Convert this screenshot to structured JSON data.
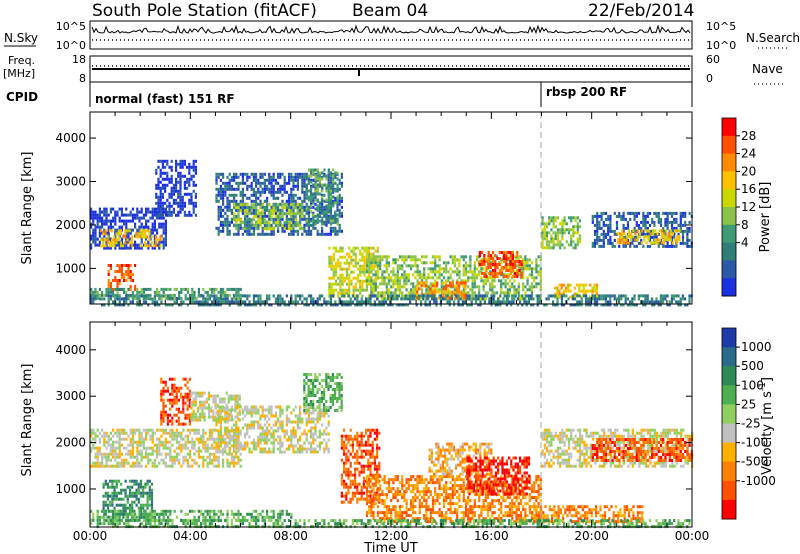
{
  "header": {
    "station": "South Pole Station (fitACF)",
    "beam": "Beam 04",
    "date": "22/Feb/2014"
  },
  "top_panels": {
    "nsky_label": "N.Sky",
    "nsky_ticks": [
      "10^5",
      "10^0"
    ],
    "nsearch_label": "N.Search",
    "nsearch_ticks": [
      "10^5",
      "10^0"
    ],
    "freq_label": "Freq.",
    "freq_unit": "[MHz]",
    "freq_ticks": [
      "18",
      "8"
    ],
    "nave_label": "Nave",
    "nave_ticks": [
      "60",
      "0"
    ],
    "cpid_label": "CPID",
    "cpid_segments": [
      {
        "label": "normal (fast) 151 RF",
        "start_hour": 0
      },
      {
        "label": "rbsp 200 RF",
        "start_hour": 18
      }
    ]
  },
  "chart_data": [
    {
      "type": "heatmap",
      "parameter": "Power",
      "ylabel": "Slant Range [km]",
      "ylim": [
        180,
        4600
      ],
      "yticks": [
        1000,
        2000,
        3000,
        4000
      ],
      "xlabel": "Time UT",
      "xlim_hours": [
        0,
        24
      ],
      "xtick_labels": [
        "00:00",
        "04:00",
        "08:00",
        "12:00",
        "16:00",
        "20:00",
        "00:00"
      ],
      "colorbar": {
        "label": "Power [dB]",
        "ticks": [
          "28",
          "24",
          "20",
          "16",
          "12",
          "8",
          "4"
        ],
        "colors": [
          "#ff0000",
          "#ff4f00",
          "#ff8a00",
          "#ffc000",
          "#c8d800",
          "#88c24a",
          "#3f9a76",
          "#2d7f77",
          "#2a5aa6",
          "#1b30e0"
        ]
      },
      "regions": [
        {
          "t0": 0,
          "t1": 3,
          "r0": 1500,
          "r1": 2400,
          "level": 9
        },
        {
          "t0": 0.4,
          "t1": 2.8,
          "r0": 1550,
          "r1": 1900,
          "level": 3
        },
        {
          "t0": 0.7,
          "t1": 1.8,
          "r0": 500,
          "r1": 1100,
          "level": 1
        },
        {
          "t0": 0,
          "t1": 6,
          "r0": 300,
          "r1": 550,
          "level": 6
        },
        {
          "t0": 2.6,
          "t1": 4.2,
          "r0": 2200,
          "r1": 3500,
          "level": 9
        },
        {
          "t0": 5,
          "t1": 10,
          "r0": 1800,
          "r1": 3200,
          "level": 8
        },
        {
          "t0": 5.7,
          "t1": 8.5,
          "r0": 1900,
          "r1": 2500,
          "level": 5
        },
        {
          "t0": 8.6,
          "t1": 9.9,
          "r0": 2000,
          "r1": 3300,
          "level": 6
        },
        {
          "t0": 9.5,
          "t1": 11.5,
          "r0": 350,
          "r1": 1500,
          "level": 4
        },
        {
          "t0": 11,
          "t1": 18,
          "r0": 300,
          "r1": 1300,
          "level": 5
        },
        {
          "t0": 13,
          "t1": 15,
          "r0": 300,
          "r1": 700,
          "level": 2
        },
        {
          "t0": 15.5,
          "t1": 17.2,
          "r0": 800,
          "r1": 1400,
          "level": 1
        },
        {
          "t0": 18,
          "t1": 19.5,
          "r0": 1500,
          "r1": 2200,
          "level": 5
        },
        {
          "t0": 18.5,
          "t1": 20.2,
          "r0": 350,
          "r1": 650,
          "level": 3
        },
        {
          "t0": 20,
          "t1": 24,
          "r0": 1500,
          "r1": 2300,
          "level": 8
        },
        {
          "t0": 21,
          "t1": 23.5,
          "r0": 1600,
          "r1": 1900,
          "level": 3
        },
        {
          "t0": 0,
          "t1": 24,
          "r0": 180,
          "r1": 400,
          "level": 7
        }
      ]
    },
    {
      "type": "heatmap",
      "parameter": "Velocity",
      "ylabel": "Slant Range [km]",
      "ylim": [
        180,
        4600
      ],
      "yticks": [
        1000,
        2000,
        3000,
        4000
      ],
      "xlabel": "Time UT",
      "xlim_hours": [
        0,
        24
      ],
      "xtick_labels": [
        "00:00",
        "04:00",
        "08:00",
        "12:00",
        "16:00",
        "20:00",
        "00:00"
      ],
      "colorbar": {
        "label": "Velocity [m s",
        "label_sup": "-1",
        "label_end": "]",
        "ticks": [
          "1000",
          "500",
          "100",
          "25",
          "-25",
          "-100",
          "-500",
          "-1000"
        ],
        "colors": [
          "#1d3ca8",
          "#2a6a8a",
          "#2e8b57",
          "#4caf50",
          "#90d060",
          "#c0c0c0",
          "#ffb000",
          "#ff8000",
          "#ff5000",
          "#ff0000"
        ]
      },
      "regions": [
        {
          "t0": 0,
          "t1": 6,
          "r0": 1500,
          "r1": 2300,
          "level": 5
        },
        {
          "t0": 0.5,
          "t1": 2.5,
          "r0": 400,
          "r1": 1200,
          "level": 2
        },
        {
          "t0": 0,
          "t1": 8,
          "r0": 300,
          "r1": 550,
          "level": 3
        },
        {
          "t0": 2.8,
          "t1": 4,
          "r0": 2400,
          "r1": 3400,
          "level": 8
        },
        {
          "t0": 4,
          "t1": 6,
          "r0": 2500,
          "r1": 3100,
          "level": 5
        },
        {
          "t0": 5,
          "t1": 9.5,
          "r0": 1800,
          "r1": 2800,
          "level": 5
        },
        {
          "t0": 8.5,
          "t1": 10,
          "r0": 2700,
          "r1": 3500,
          "level": 3
        },
        {
          "t0": 10,
          "t1": 11.5,
          "r0": 700,
          "r1": 2300,
          "level": 8
        },
        {
          "t0": 11,
          "t1": 18,
          "r0": 300,
          "r1": 1300,
          "level": 7
        },
        {
          "t0": 13.5,
          "t1": 16,
          "r0": 1300,
          "r1": 2000,
          "level": 6
        },
        {
          "t0": 15,
          "t1": 17.5,
          "r0": 900,
          "r1": 1700,
          "level": 9
        },
        {
          "t0": 17.5,
          "t1": 22,
          "r0": 300,
          "r1": 650,
          "level": 7
        },
        {
          "t0": 18,
          "t1": 24,
          "r0": 1500,
          "r1": 2300,
          "level": 5
        },
        {
          "t0": 20,
          "t1": 24,
          "r0": 1600,
          "r1": 2100,
          "level": 8
        },
        {
          "t0": 0,
          "t1": 24,
          "r0": 180,
          "r1": 350,
          "level": 3
        }
      ]
    }
  ]
}
